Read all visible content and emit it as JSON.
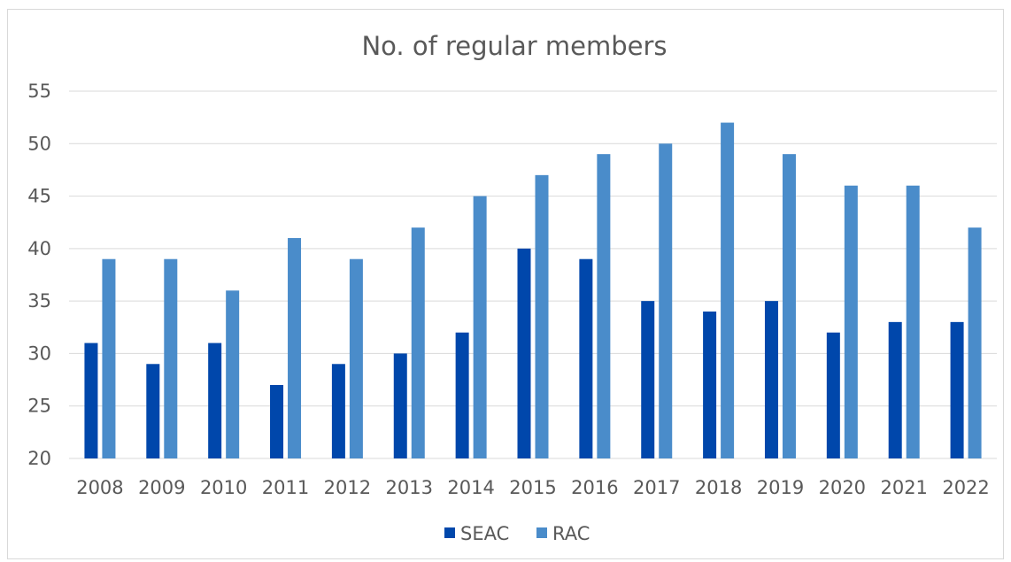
{
  "chart_data": {
    "type": "bar",
    "title": "No. of regular members",
    "xlabel": "",
    "ylabel": "",
    "categories": [
      "2008",
      "2009",
      "2010",
      "2011",
      "2012",
      "2013",
      "2014",
      "2015",
      "2016",
      "2017",
      "2018",
      "2019",
      "2020",
      "2021",
      "2022"
    ],
    "series": [
      {
        "name": "SEAC",
        "color": "#0047ab",
        "values": [
          31,
          29,
          31,
          27,
          29,
          30,
          32,
          40,
          39,
          35,
          34,
          35,
          32,
          33,
          33
        ]
      },
      {
        "name": "RAC",
        "color": "#4a8cca",
        "values": [
          39,
          39,
          36,
          41,
          39,
          42,
          45,
          47,
          49,
          50,
          52,
          49,
          46,
          46,
          42
        ]
      }
    ],
    "ylim": [
      20,
      55
    ],
    "yticks": [
      20,
      25,
      30,
      35,
      40,
      45,
      50,
      55
    ],
    "grid": true,
    "legend_position": "bottom"
  }
}
